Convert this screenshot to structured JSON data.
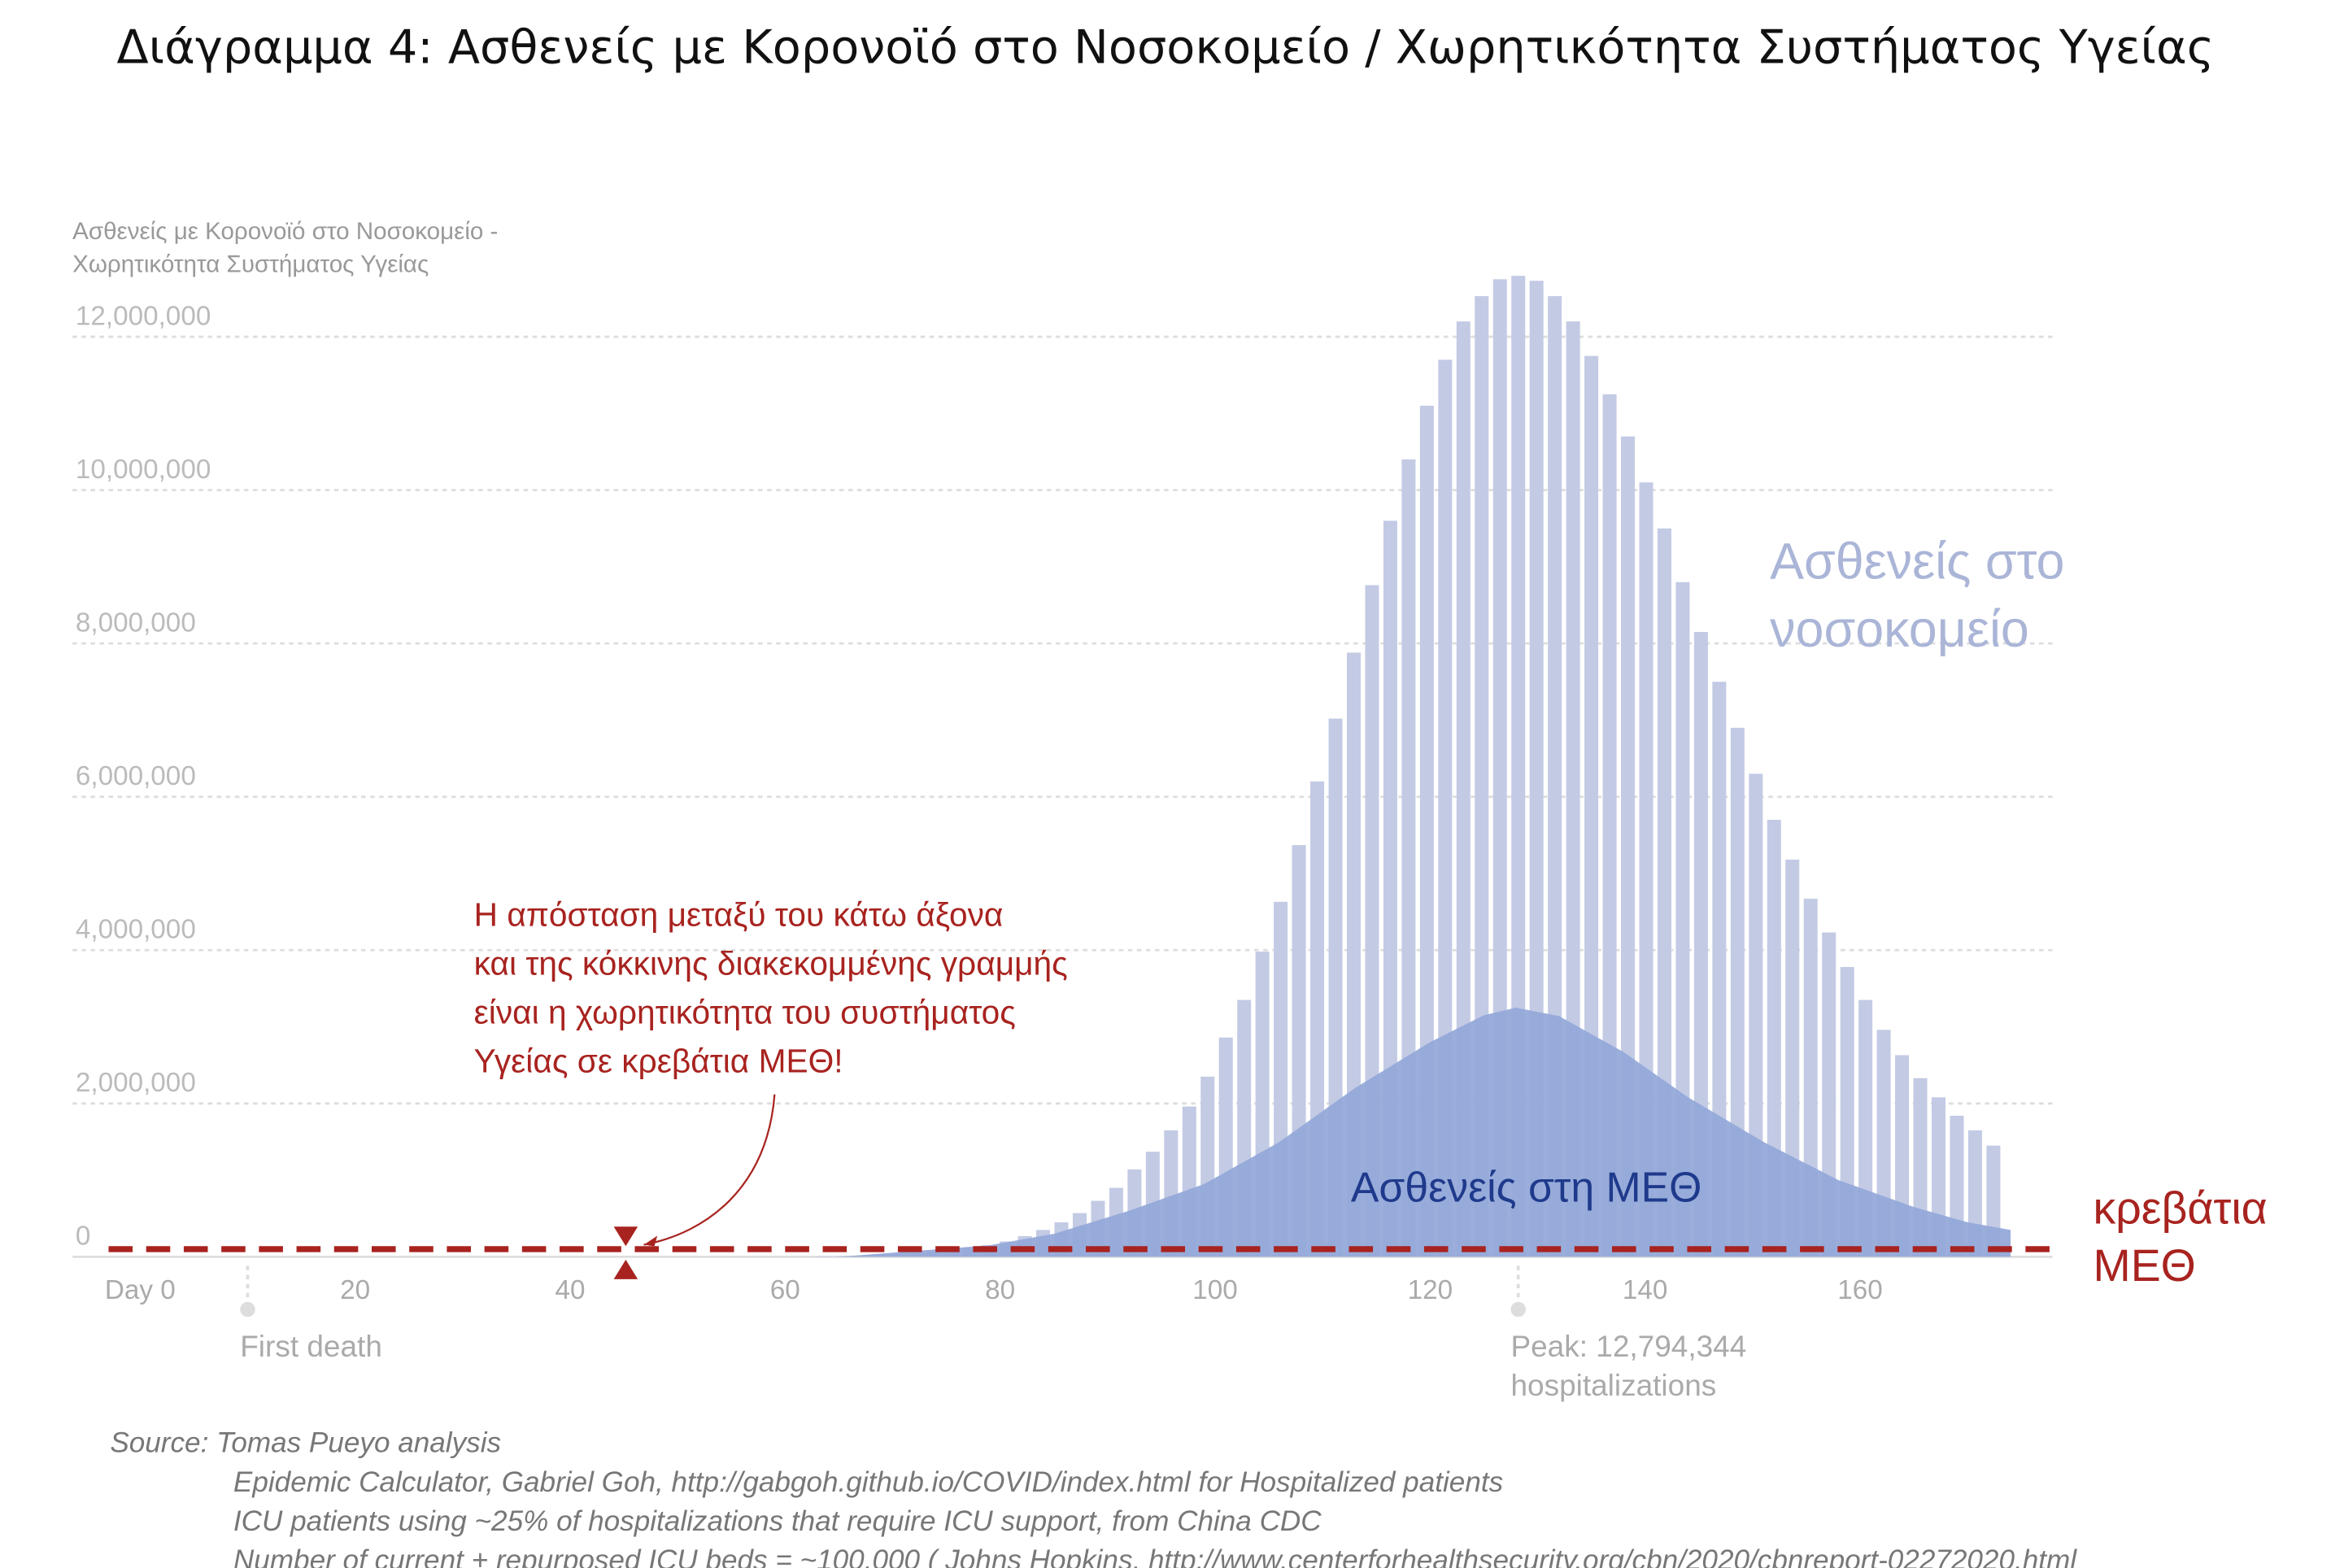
{
  "chart_data": {
    "type": "bar",
    "title": "Διάγραμμα 4: Ασθενείς με Κορονοϊό στο Νοσοκομείο / Χωρητικότητα Συστήματος Υγείας",
    "y_axis_title": [
      "Ασθενείς με Κορονοϊό στο Νοσοκομείο  -",
      "Χωρητικότητα Συστήματος Υγείας"
    ],
    "xlim": [
      -6,
      178
    ],
    "ylim": [
      0,
      13000000
    ],
    "xticks": [
      {
        "value": 0,
        "label": "Day 0"
      },
      20,
      40,
      60,
      80,
      100,
      120,
      140,
      160
    ],
    "yticks": [
      0,
      {
        "value": 2000000,
        "label": "2,000,000"
      },
      {
        "value": 4000000,
        "label": "4,000,000"
      },
      {
        "value": 6000000,
        "label": "6,000,000"
      },
      {
        "value": 8000000,
        "label": "8,000,000"
      },
      {
        "value": 10000000,
        "label": "10,000,000"
      },
      {
        "value": 12000000,
        "label": "12,000,000"
      }
    ],
    "grid": true,
    "series": [
      {
        "type": "bar",
        "label": [
          "Ασθενείς στο",
          "νοσοκομείο"
        ],
        "color": "#c3cae4",
        "label_color": "#aab5d7",
        "x": [
          63.6,
          65.3,
          67.0,
          68.7,
          70.4,
          72.1,
          73.8,
          75.5,
          77.2,
          78.9,
          80.6,
          82.3,
          84.0,
          85.7,
          87.4,
          89.1,
          90.8,
          92.5,
          94.2,
          95.9,
          97.6,
          99.3,
          101.0,
          102.7,
          104.4,
          106.1,
          107.8,
          109.5,
          111.2,
          112.9,
          114.6,
          116.3,
          118.0,
          119.7,
          121.4,
          123.1,
          124.8,
          126.5,
          128.2,
          129.9,
          131.6,
          133.3,
          135.0,
          136.7,
          138.4,
          140.1,
          141.8,
          143.5,
          145.2,
          146.9,
          148.6,
          150.3,
          152.0,
          153.7,
          155.4,
          157.1,
          158.8,
          160.5,
          162.2,
          163.9,
          165.6,
          167.3,
          169.0,
          170.7,
          172.4
        ],
        "values": [
          7000,
          10000,
          15000,
          20000,
          30000,
          40000,
          60000,
          80000,
          110000,
          150000,
          200000,
          270000,
          350000,
          450000,
          570000,
          730000,
          900000,
          1140000,
          1370000,
          1650000,
          1960000,
          2350000,
          2860000,
          3350000,
          3980000,
          4630000,
          5370000,
          6200000,
          7020000,
          7880000,
          8760000,
          9600000,
          10400000,
          11100000,
          11700000,
          12200000,
          12530000,
          12750000,
          12794344,
          12730000,
          12530000,
          12200000,
          11750000,
          11250000,
          10700000,
          10100000,
          9500000,
          8800000,
          8150000,
          7500000,
          6900000,
          6300000,
          5700000,
          5180000,
          4670000,
          4230000,
          3780000,
          3350000,
          2960000,
          2630000,
          2330000,
          2080000,
          1840000,
          1650000,
          1450000
        ]
      },
      {
        "type": "area",
        "label": [
          "Ασθενείς στη ΜΕΘ"
        ],
        "color": "#95a9d9",
        "label_color": "#1f3a8c",
        "x": [
          65,
          79,
          85,
          92,
          99,
          106,
          113,
          120,
          125,
          128,
          132,
          138,
          144,
          151,
          158,
          165,
          170,
          174
        ],
        "values": [
          0,
          150000,
          300000,
          600000,
          950000,
          1500000,
          2200000,
          2800000,
          3150000,
          3250000,
          3140000,
          2670000,
          2080000,
          1500000,
          1000000,
          650000,
          450000,
          350000
        ]
      }
    ],
    "hline": {
      "value": 100000,
      "color": "#a8231f",
      "label": [
        "κρεβάτια",
        "ΜΕΘ"
      ]
    },
    "markers": [
      {
        "x": 10,
        "label": [
          "First death"
        ]
      },
      {
        "x": 128.2,
        "label": [
          "Peak: 12,794,344",
          "hospitalizations"
        ]
      }
    ],
    "annotation": [
      "Η απόσταση μεταξύ του κάτω άξονα",
      "και της κόκκινης διακεκομμένης γραμμής",
      "είναι η χωρητικότητα του συστήματος",
      "Υγείας σε κρεβάτια ΜΕΘ!"
    ],
    "source": [
      "Source: Tomas Pueyo analysis",
      "Epidemic Calculator, Gabriel Goh, http://gabgoh.github.io/COVID/index.html for Hospitalized patients",
      "ICU patients using ~25% of hospitalizations that require ICU support, from China CDC",
      "Number of current + repurposed ICU beds = ~100,000 ( Johns Hopkins, http://www.centerforhealthsecurity.org/cbn/2020/cbnreport-02272020.html"
    ]
  }
}
